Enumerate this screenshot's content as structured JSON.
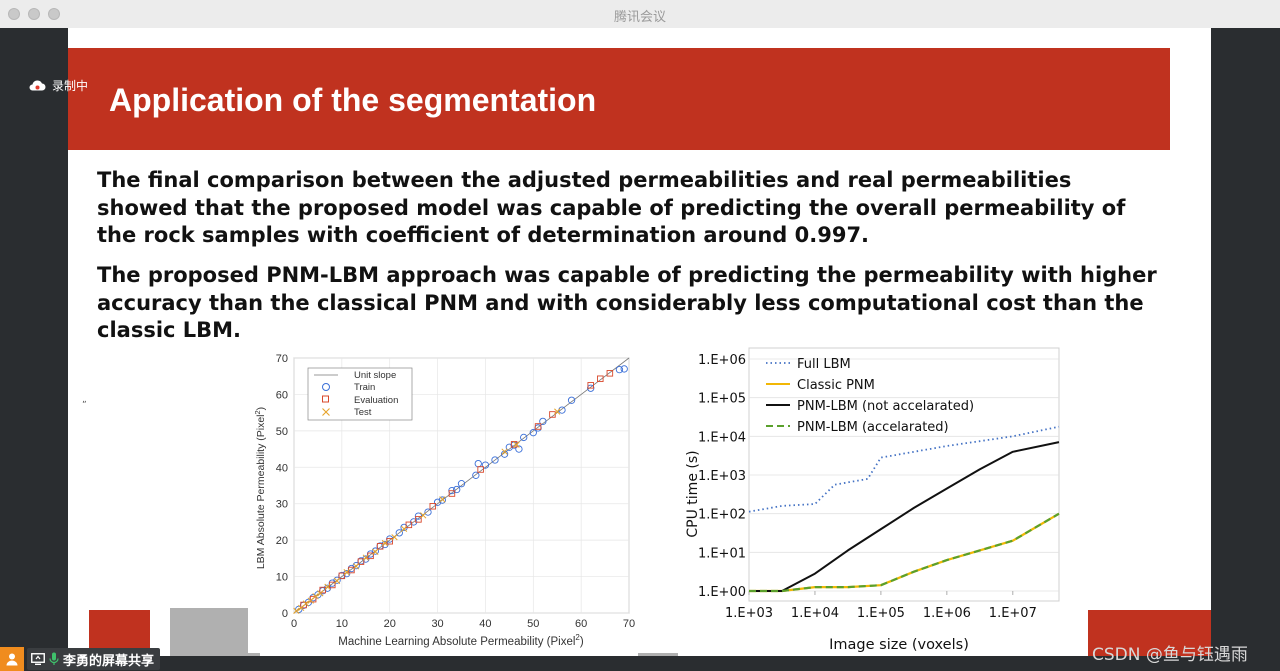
{
  "window": {
    "title": "腾讯会议",
    "recording_label": "录制中",
    "share_label": "李勇的屏幕共享",
    "watermark": "CSDN @鱼与钰遇雨"
  },
  "slide": {
    "title": "Application of the segmentation",
    "para1": " The final comparison between the adjusted permeabilities and real permeabilities showed that the proposed model was capable of predicting the overall permeability of the rock samples with coefficient of determination around 0.997.",
    "para2": "The proposed PNM-LBM approach was capable of predicting the permeability with higher accuracy than the classical PNM and with considerably less computational cost than the classic LBM.",
    "stray_mark": "„"
  },
  "colors": {
    "banner": "#c0321f",
    "train": "#3a6fd8",
    "evaluation": "#d9482b",
    "test": "#e6a32a",
    "full_lbm": "#4472c4",
    "classic_pnm": "#f2b705",
    "pnm_lbm_not_acc": "#111111",
    "pnm_lbm_acc": "#5aa02c"
  },
  "chart_data": [
    {
      "type": "scatter",
      "title": "",
      "xlabel": "Machine Learning Absolute Permeability (Pixel",
      "ylabel": "LBM Absolute Permeability (Pixel",
      "unit_sup": "2",
      "unit_close": ")",
      "xlim": [
        0,
        70
      ],
      "ylim": [
        0,
        70
      ],
      "xticks": [
        "0",
        "10",
        "20",
        "30",
        "40",
        "50",
        "60",
        "70"
      ],
      "yticks": [
        "0",
        "10",
        "20",
        "30",
        "40",
        "50",
        "60",
        "70"
      ],
      "grid": true,
      "legend": [
        "Unit slope",
        "Train",
        "Evaluation",
        "Test"
      ],
      "legend_position": "top-left",
      "series": [
        {
          "name": "Train",
          "marker": "circle",
          "points": [
            [
              1,
              1
            ],
            [
              2,
              2.1
            ],
            [
              3,
              2.9
            ],
            [
              4,
              4.2
            ],
            [
              5,
              5
            ],
            [
              6,
              6.1
            ],
            [
              7,
              6.8
            ],
            [
              8,
              8.2
            ],
            [
              9,
              9
            ],
            [
              10,
              10.3
            ],
            [
              11,
              10.8
            ],
            [
              12,
              12.2
            ],
            [
              13,
              13
            ],
            [
              14,
              14.3
            ],
            [
              15,
              14.8
            ],
            [
              16,
              16.2
            ],
            [
              17,
              17
            ],
            [
              18,
              18.4
            ],
            [
              19,
              18.8
            ],
            [
              20,
              20.3
            ],
            [
              22,
              22
            ],
            [
              23,
              23.5
            ],
            [
              25,
              25
            ],
            [
              26,
              26.6
            ],
            [
              28,
              27.7
            ],
            [
              30,
              30.4
            ],
            [
              31,
              31
            ],
            [
              33,
              33.6
            ],
            [
              34,
              33.9
            ],
            [
              35,
              35.5
            ],
            [
              38,
              37.8
            ],
            [
              38.5,
              41
            ],
            [
              40,
              40.6
            ],
            [
              42,
              42
            ],
            [
              44,
              43.6
            ],
            [
              45,
              45.5
            ],
            [
              46,
              46.1
            ],
            [
              47,
              45
            ],
            [
              48,
              48.2
            ],
            [
              50,
              49.5
            ],
            [
              51,
              50.8
            ],
            [
              52,
              52.6
            ],
            [
              56,
              55.7
            ],
            [
              58,
              58.4
            ],
            [
              62,
              61.7
            ],
            [
              68,
              66.8
            ],
            [
              69,
              67
            ]
          ]
        },
        {
          "name": "Evaluation",
          "marker": "square",
          "points": [
            [
              2,
              2.2
            ],
            [
              4,
              3.8
            ],
            [
              6,
              6.3
            ],
            [
              8,
              7.7
            ],
            [
              10,
              10.2
            ],
            [
              12,
              11.8
            ],
            [
              14,
              14.1
            ],
            [
              16,
              15.7
            ],
            [
              18,
              18.3
            ],
            [
              20,
              19.7
            ],
            [
              24,
              24.2
            ],
            [
              26,
              25.7
            ],
            [
              29,
              29.3
            ],
            [
              33,
              32.8
            ],
            [
              39,
              39.4
            ],
            [
              46,
              46.3
            ],
            [
              51,
              51.2
            ],
            [
              54,
              54.5
            ],
            [
              62,
              62.5
            ],
            [
              64,
              64.3
            ],
            [
              66,
              65.8
            ]
          ]
        },
        {
          "name": "Test",
          "marker": "x",
          "points": [
            [
              0.5,
              0.6
            ],
            [
              1.5,
              1.4
            ],
            [
              2.5,
              2.6
            ],
            [
              3.5,
              3.4
            ],
            [
              4.5,
              4.6
            ],
            [
              5.5,
              5.4
            ],
            [
              7,
              7.2
            ],
            [
              9,
              8.8
            ],
            [
              11,
              11.2
            ],
            [
              13,
              12.8
            ],
            [
              15,
              15.2
            ],
            [
              17,
              16.8
            ],
            [
              19,
              19.2
            ],
            [
              21,
              20.8
            ],
            [
              23,
              23.1
            ],
            [
              27,
              26.8
            ],
            [
              31,
              31.2
            ],
            [
              44,
              44.3
            ],
            [
              46.5,
              46.2
            ],
            [
              55,
              55.3
            ]
          ]
        }
      ]
    },
    {
      "type": "line",
      "title": "",
      "xlabel": "Image size (voxels)",
      "ylabel": "CPU time (s)",
      "x_scale": "log",
      "y_scale": "log",
      "xlim_exp": [
        3,
        7.7
      ],
      "ylim_exp": [
        0,
        6
      ],
      "xticks": [
        "1.E+03",
        "1.E+04",
        "1.E+05",
        "1.E+06",
        "1.E+07"
      ],
      "yticks": [
        "1.E+00",
        "1.E+01",
        "1.E+02",
        "1.E+03",
        "1.E+04",
        "1.E+05",
        "1.E+06"
      ],
      "legend_position": "top-left",
      "series": [
        {
          "name": "Full LBM",
          "style": "dotted",
          "points_log10": [
            [
              3,
              2.05
            ],
            [
              3.5,
              2.2
            ],
            [
              4,
              2.25
            ],
            [
              4.3,
              2.75
            ],
            [
              4.8,
              2.9
            ],
            [
              5,
              3.45
            ],
            [
              6,
              3.75
            ],
            [
              7,
              4.0
            ],
            [
              7.7,
              4.25
            ]
          ]
        },
        {
          "name": "Classic PNM",
          "style": "solid",
          "points_log10": [
            [
              3,
              0
            ],
            [
              3.5,
              0
            ],
            [
              4,
              0.1
            ],
            [
              4.5,
              0.1
            ],
            [
              5,
              0.15
            ],
            [
              5.5,
              0.5
            ],
            [
              6,
              0.8
            ],
            [
              7,
              1.3
            ],
            [
              7.7,
              2.0
            ]
          ]
        },
        {
          "name": "PNM-LBM (not accelarated)",
          "style": "solid",
          "points_log10": [
            [
              3,
              0
            ],
            [
              3.5,
              0
            ],
            [
              4,
              0.45
            ],
            [
              4.5,
              1.05
            ],
            [
              5,
              1.6
            ],
            [
              5.5,
              2.15
            ],
            [
              6,
              2.65
            ],
            [
              6.5,
              3.15
            ],
            [
              7,
              3.6
            ],
            [
              7.7,
              3.85
            ]
          ]
        },
        {
          "name": "PNM-LBM (accelarated)",
          "style": "dashed",
          "points_log10": [
            [
              3,
              0
            ],
            [
              3.5,
              0
            ],
            [
              4,
              0.1
            ],
            [
              4.5,
              0.1
            ],
            [
              5,
              0.15
            ],
            [
              5.5,
              0.5
            ],
            [
              6,
              0.8
            ],
            [
              7,
              1.3
            ],
            [
              7.7,
              2.0
            ]
          ]
        }
      ]
    }
  ]
}
